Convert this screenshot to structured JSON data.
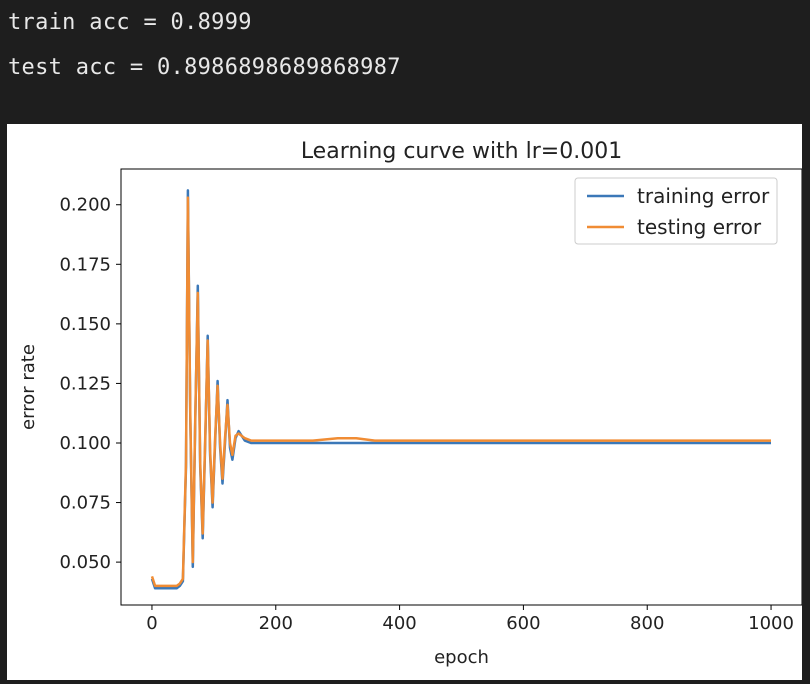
{
  "output": {
    "line1": "train acc = 0.8999",
    "line2": "test acc = 0.8986898689868987"
  },
  "chart_data": {
    "type": "line",
    "title": "Learning curve with lr=0.001",
    "xlabel": "epoch",
    "ylabel": "error rate",
    "xlim": [
      -50,
      1050
    ],
    "ylim": [
      0.032,
      0.215
    ],
    "xticks": [
      0,
      200,
      400,
      600,
      800,
      1000
    ],
    "xtick_labels": [
      "0",
      "200",
      "400",
      "600",
      "800",
      "1000"
    ],
    "yticks": [
      0.05,
      0.075,
      0.1,
      0.125,
      0.15,
      0.175,
      0.2
    ],
    "ytick_labels": [
      "0.050",
      "0.075",
      "0.100",
      "0.125",
      "0.150",
      "0.175",
      "0.200"
    ],
    "legend_position": "top-right",
    "colors": {
      "training": "#3b78b8",
      "testing": "#f08c34"
    },
    "series": [
      {
        "name": "training error",
        "x": [
          0,
          5,
          10,
          20,
          30,
          40,
          45,
          50,
          55,
          58,
          62,
          66,
          70,
          74,
          78,
          82,
          86,
          90,
          94,
          98,
          102,
          106,
          110,
          114,
          118,
          122,
          126,
          130,
          135,
          140,
          150,
          160,
          180,
          200,
          230,
          260,
          300,
          330,
          360,
          400,
          450,
          500,
          550,
          600,
          650,
          700,
          750,
          800,
          850,
          900,
          950,
          1000
        ],
        "y": [
          0.043,
          0.039,
          0.039,
          0.039,
          0.039,
          0.039,
          0.04,
          0.042,
          0.09,
          0.206,
          0.11,
          0.048,
          0.11,
          0.166,
          0.09,
          0.06,
          0.1,
          0.145,
          0.095,
          0.073,
          0.1,
          0.126,
          0.098,
          0.083,
          0.1,
          0.118,
          0.098,
          0.093,
          0.102,
          0.105,
          0.101,
          0.1,
          0.1,
          0.1,
          0.1,
          0.1,
          0.1,
          0.1,
          0.1,
          0.1,
          0.1,
          0.1,
          0.1,
          0.1,
          0.1,
          0.1,
          0.1,
          0.1,
          0.1,
          0.1,
          0.1,
          0.1
        ]
      },
      {
        "name": "testing error",
        "x": [
          0,
          5,
          10,
          20,
          30,
          40,
          45,
          50,
          55,
          58,
          62,
          66,
          70,
          74,
          78,
          82,
          86,
          90,
          94,
          98,
          102,
          106,
          110,
          114,
          118,
          122,
          126,
          130,
          135,
          140,
          150,
          160,
          180,
          200,
          230,
          260,
          300,
          330,
          360,
          400,
          450,
          500,
          550,
          600,
          650,
          700,
          750,
          800,
          850,
          900,
          950,
          1000
        ],
        "y": [
          0.044,
          0.04,
          0.04,
          0.04,
          0.04,
          0.04,
          0.041,
          0.043,
          0.092,
          0.203,
          0.112,
          0.05,
          0.112,
          0.163,
          0.092,
          0.062,
          0.102,
          0.143,
          0.097,
          0.075,
          0.102,
          0.124,
          0.1,
          0.085,
          0.102,
          0.116,
          0.1,
          0.095,
          0.103,
          0.104,
          0.102,
          0.101,
          0.101,
          0.101,
          0.101,
          0.101,
          0.102,
          0.102,
          0.101,
          0.101,
          0.101,
          0.101,
          0.101,
          0.101,
          0.101,
          0.101,
          0.101,
          0.101,
          0.101,
          0.101,
          0.101,
          0.101
        ]
      }
    ]
  }
}
